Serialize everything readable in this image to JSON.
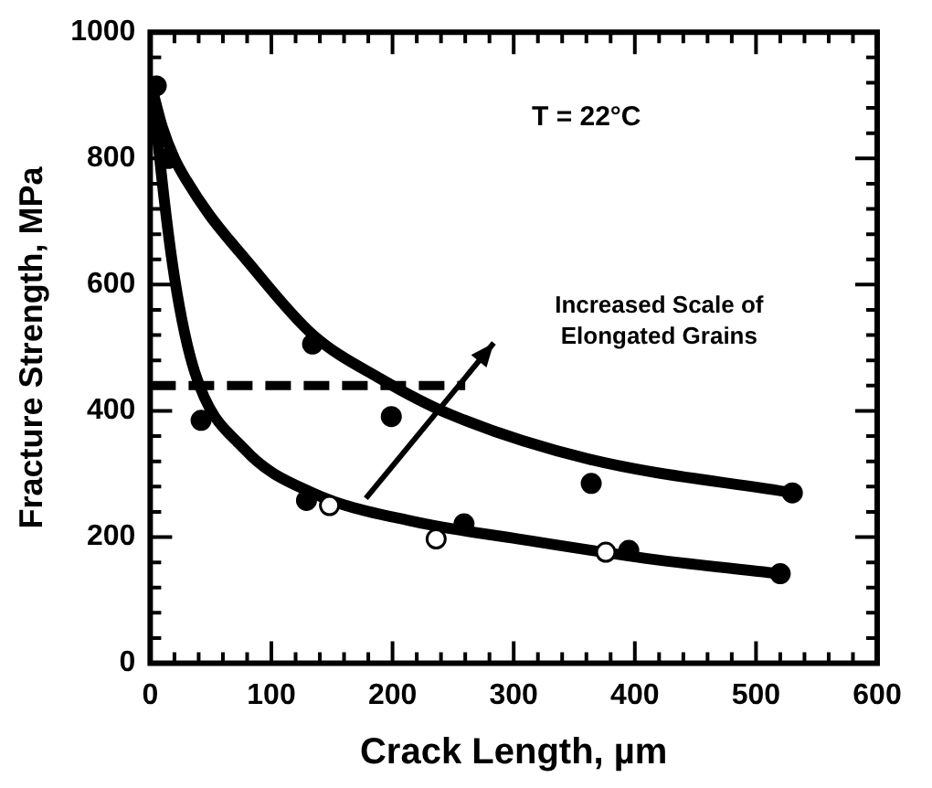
{
  "chart_data": {
    "type": "scatter",
    "xlabel": "Crack Length, µm",
    "ylabel": "Fracture Strength, MPa",
    "xlim": [
      0,
      600
    ],
    "xticks": [
      0,
      100,
      200,
      300,
      400,
      500,
      600
    ],
    "ylim": [
      0,
      1000
    ],
    "yticks": [
      0,
      200,
      400,
      600,
      800,
      1000
    ],
    "grid": false,
    "legend": false,
    "marker": "circle",
    "annotations": [
      "T = 22°C",
      "Increased Scale of\nElongated Grains"
    ],
    "series": [
      {
        "type": "line",
        "marker": "none",
        "color": "#000000",
        "line_style": "solid",
        "x": [
          3,
          10,
          20,
          30,
          49,
          78,
          134,
          190,
          248,
          361,
          531
        ],
        "values": [
          900,
          850,
          800,
          765,
          710,
          642,
          521,
          451,
          394,
          324,
          270
        ]
      },
      {
        "type": "line",
        "marker": "none",
        "color": "#000000",
        "line_style": "solid",
        "x": [
          3,
          7,
          20,
          37,
          78,
          134,
          219,
          304,
          418,
          520
        ],
        "values": [
          900,
          815,
          612,
          460,
          339,
          270,
          224,
          197,
          164,
          142
        ]
      },
      {
        "type": "line",
        "marker": "none",
        "color": "#000000",
        "line_style": "dashed",
        "x": [
          0,
          260
        ],
        "values": [
          440,
          440
        ]
      },
      {
        "color": "#000000",
        "x": [
          5,
          15,
          134,
          199,
          364,
          530,
          42,
          129,
          259,
          395,
          520
        ],
        "values": [
          915,
          800,
          506,
          391,
          285,
          270,
          385,
          258,
          221,
          179,
          142
        ]
      },
      {
        "color": "#ffffff",
        "x": [
          148,
          236,
          376
        ],
        "values": [
          250,
          197,
          176
        ]
      }
    ]
  }
}
